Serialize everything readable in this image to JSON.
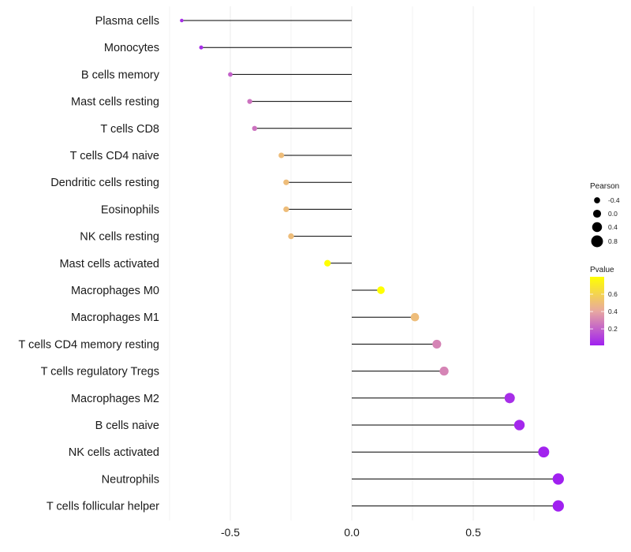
{
  "chart_data": {
    "type": "lollipop",
    "title": "",
    "xlabel": "",
    "ylabel": "",
    "xlim": [
      -0.75,
      0.88
    ],
    "xticks": [
      -0.5,
      0.0,
      0.5
    ],
    "xtick_labels": [
      "-0.5",
      "0.0",
      "0.5"
    ],
    "grid": true,
    "categories": [
      "Plasma cells",
      "Monocytes",
      "B cells memory",
      "Mast cells resting",
      "T cells CD8",
      "T cells CD4 naive",
      "Dendritic cells resting",
      "Eosinophils",
      "NK cells resting",
      "Mast cells activated",
      "Macrophages M0",
      "Macrophages M1",
      "T cells CD4 memory resting",
      "T cells regulatory  Tregs ",
      "Macrophages M2",
      "B cells naive",
      "NK cells activated",
      "Neutrophils",
      "T cells follicular helper"
    ],
    "pearson": [
      -0.7,
      -0.62,
      -0.5,
      -0.42,
      -0.4,
      -0.29,
      -0.27,
      -0.27,
      -0.25,
      -0.1,
      0.12,
      0.26,
      0.35,
      0.38,
      0.65,
      0.69,
      0.79,
      0.85,
      0.85
    ],
    "pvalue": [
      0.05,
      0.05,
      0.2,
      0.25,
      0.25,
      0.5,
      0.5,
      0.5,
      0.5,
      0.8,
      0.8,
      0.5,
      0.3,
      0.3,
      0.05,
      0.03,
      0.02,
      0.01,
      0.01
    ],
    "legend_size": {
      "title": "Pearson",
      "values": [
        -0.4,
        0.0,
        0.4,
        0.8
      ],
      "labels": [
        "-0.4",
        "0.0",
        "0.4",
        "0.8"
      ]
    },
    "legend_color": {
      "title": "Pvalue",
      "range": [
        0.01,
        0.8
      ],
      "ticks": [
        0.6,
        0.4,
        0.2
      ],
      "labels": [
        "0.6",
        "0.4",
        "0.2"
      ],
      "low_color": "#a020f0",
      "mid_color": "#e8a8a0",
      "high_color": "#ffff00"
    },
    "colors": {
      "segment": "#000000",
      "grid": "#ebebeb",
      "background": "#ffffff"
    }
  }
}
